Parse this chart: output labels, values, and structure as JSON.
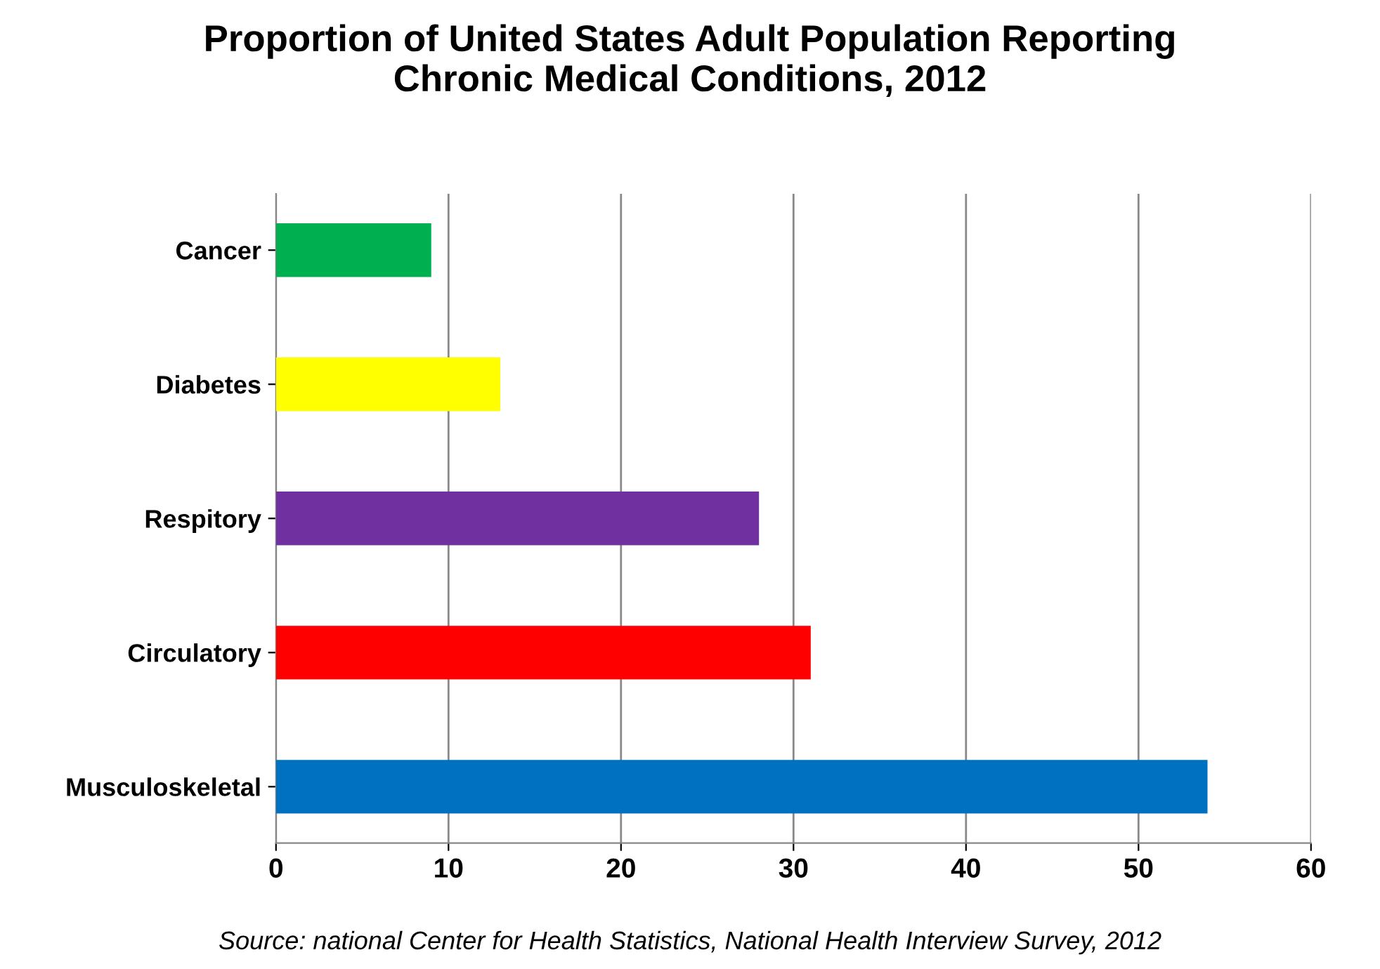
{
  "chart_data": {
    "type": "bar",
    "orientation": "horizontal",
    "title": "Proportion of United States Adult Population Reporting\nChronic Medical Conditions, 2012",
    "categories": [
      "Cancer",
      "Diabetes",
      "Respitory",
      "Circulatory",
      "Musculoskeletal"
    ],
    "values": [
      9,
      13,
      28,
      31,
      54
    ],
    "colors": [
      "#00b050",
      "#ffff00",
      "#7030a0",
      "#ff0000",
      "#0070c0"
    ],
    "xlim": [
      0,
      60
    ],
    "xticks": [
      0,
      10,
      20,
      30,
      40,
      50,
      60
    ],
    "grid": "x",
    "annotations": [
      "Source: national Center for Health Statistics, National Health Interview Survey, 2012"
    ]
  }
}
